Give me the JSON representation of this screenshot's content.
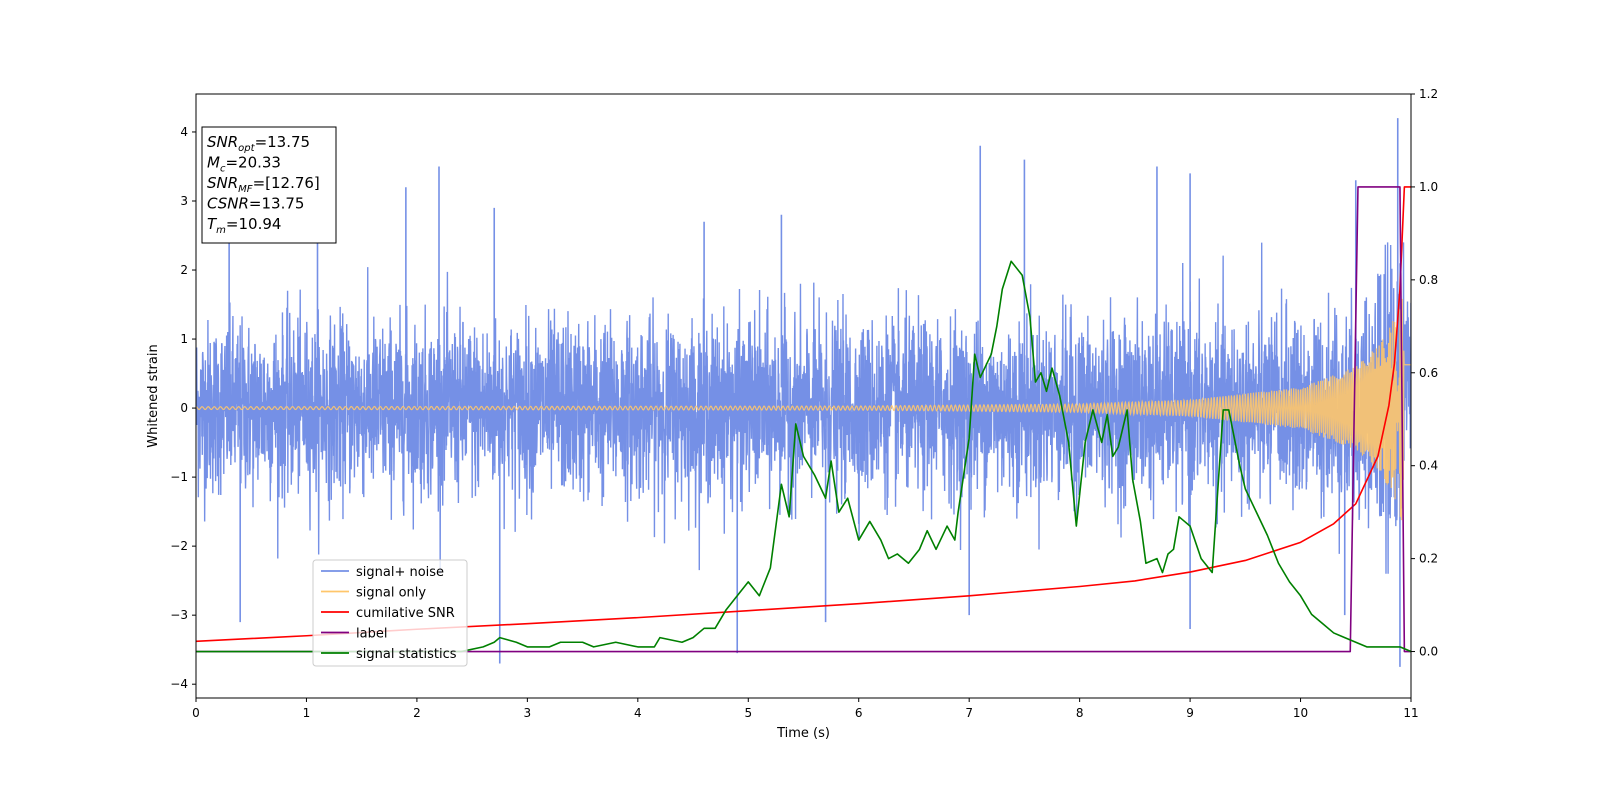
{
  "chart_data": {
    "type": "line",
    "title": "",
    "xlabel": "Time (s)",
    "ylabel": "Whitened strain",
    "xlim": [
      0,
      11
    ],
    "ylim": [
      -4.2,
      4.55
    ],
    "y2lim": [
      -0.1,
      1.2
    ],
    "xticks": [
      0,
      1,
      2,
      3,
      4,
      5,
      6,
      7,
      8,
      9,
      10,
      11
    ],
    "yticks": [
      -4,
      -3,
      -2,
      -1,
      0,
      1,
      2,
      3,
      4
    ],
    "y2ticks": [
      "0.0",
      "0.2",
      "0.4",
      "0.6",
      "0.8",
      "1.0",
      "1.2"
    ],
    "grid": false,
    "legend_placement": "lower-left",
    "annotation": {
      "lines": [
        {
          "sym": "SNR",
          "sub": "opt",
          "val": "=13.75"
        },
        {
          "sym": "M",
          "sub": "c",
          "val": "=20.33"
        },
        {
          "sym": "SNR",
          "sub": "MF",
          "val": "=[12.76]"
        },
        {
          "sym": "CSNR",
          "sub": "",
          "val": "=13.75"
        },
        {
          "sym": "T",
          "sub": "m",
          "val": "=10.94"
        }
      ]
    },
    "series": [
      {
        "name": "signal+ noise",
        "color": "#7590e6",
        "axis": "left",
        "note": "dense noise band, typical amplitude ±1.4 with spikes reaching about 4.2 and -3.7",
        "peaks": [
          [
            0.3,
            2.5
          ],
          [
            1.1,
            2.5
          ],
          [
            1.9,
            3.2
          ],
          [
            2.2,
            3.5
          ],
          [
            2.7,
            2.9
          ],
          [
            4.6,
            2.7
          ],
          [
            5.3,
            2.8
          ],
          [
            7.1,
            3.8
          ],
          [
            7.5,
            3.6
          ],
          [
            8.7,
            3.5
          ],
          [
            9.0,
            3.4
          ],
          [
            10.5,
            3.3
          ],
          [
            10.88,
            4.2
          ]
        ],
        "troughs": [
          [
            0.4,
            -3.1
          ],
          [
            2.75,
            -3.7
          ],
          [
            4.9,
            -3.55
          ],
          [
            5.7,
            -3.1
          ],
          [
            7.0,
            -3.0
          ],
          [
            9.0,
            -3.2
          ],
          [
            10.4,
            -3.0
          ],
          [
            10.9,
            -3.75
          ]
        ]
      },
      {
        "name": "signal only",
        "color": "#ffc66b",
        "axis": "left",
        "note": "chirp oscillation with growing amplitude",
        "envelope": [
          [
            0,
            0.02
          ],
          [
            6,
            0.03
          ],
          [
            8,
            0.06
          ],
          [
            9,
            0.12
          ],
          [
            10,
            0.3
          ],
          [
            10.5,
            0.6
          ],
          [
            10.7,
            0.9
          ],
          [
            10.85,
            1.3
          ],
          [
            10.94,
            1.8
          ],
          [
            11,
            1.8
          ]
        ]
      },
      {
        "name": "cumilative SNR",
        "color": "#ff0000",
        "axis": "right",
        "x": [
          0,
          1,
          2,
          3,
          4,
          5,
          6,
          7,
          8,
          8.5,
          9,
          9.5,
          10,
          10.3,
          10.5,
          10.7,
          10.8,
          10.85,
          10.9,
          10.94,
          11
        ],
        "y": [
          0.022,
          0.034,
          0.048,
          0.06,
          0.073,
          0.088,
          0.103,
          0.12,
          0.14,
          0.152,
          0.171,
          0.196,
          0.235,
          0.275,
          0.318,
          0.42,
          0.53,
          0.62,
          0.78,
          1.0,
          1.0
        ]
      },
      {
        "name": "label",
        "color": "#800080",
        "axis": "right",
        "x": [
          0,
          10.45,
          10.52,
          10.9,
          10.94,
          11
        ],
        "y": [
          0,
          0,
          1,
          1,
          0,
          0
        ]
      },
      {
        "name": "signal statistics",
        "color": "#008000",
        "axis": "right",
        "x": [
          0,
          2.4,
          2.6,
          2.7,
          2.75,
          2.9,
          3.0,
          3.2,
          3.3,
          3.5,
          3.6,
          3.8,
          4.0,
          4.15,
          4.2,
          4.4,
          4.5,
          4.6,
          4.7,
          4.8,
          4.9,
          5.0,
          5.1,
          5.2,
          5.3,
          5.37,
          5.43,
          5.5,
          5.6,
          5.7,
          5.75,
          5.82,
          5.9,
          6.0,
          6.1,
          6.2,
          6.27,
          6.35,
          6.45,
          6.55,
          6.62,
          6.7,
          6.8,
          6.87,
          6.9,
          7.0,
          7.05,
          7.1,
          7.2,
          7.25,
          7.3,
          7.38,
          7.48,
          7.55,
          7.6,
          7.65,
          7.7,
          7.75,
          7.82,
          7.9,
          7.97,
          8.05,
          8.12,
          8.2,
          8.25,
          8.3,
          8.35,
          8.43,
          8.48,
          8.55,
          8.6,
          8.7,
          8.75,
          8.8,
          8.85,
          8.9,
          8.95,
          9.0,
          9.1,
          9.2,
          9.3,
          9.35,
          9.45,
          9.5,
          9.6,
          9.7,
          9.8,
          9.9,
          10.0,
          10.1,
          10.2,
          10.3,
          10.4,
          10.5,
          10.6,
          10.7,
          10.8,
          10.9,
          11
        ],
        "y": [
          0,
          0.0,
          0.01,
          0.02,
          0.03,
          0.02,
          0.01,
          0.01,
          0.02,
          0.02,
          0.01,
          0.02,
          0.01,
          0.01,
          0.03,
          0.02,
          0.03,
          0.05,
          0.05,
          0.09,
          0.12,
          0.15,
          0.12,
          0.18,
          0.36,
          0.29,
          0.49,
          0.42,
          0.38,
          0.33,
          0.41,
          0.3,
          0.33,
          0.24,
          0.28,
          0.24,
          0.2,
          0.21,
          0.19,
          0.22,
          0.26,
          0.22,
          0.27,
          0.24,
          0.3,
          0.46,
          0.64,
          0.59,
          0.64,
          0.7,
          0.78,
          0.84,
          0.81,
          0.72,
          0.58,
          0.6,
          0.56,
          0.61,
          0.55,
          0.45,
          0.27,
          0.45,
          0.52,
          0.45,
          0.51,
          0.42,
          0.44,
          0.52,
          0.37,
          0.28,
          0.19,
          0.2,
          0.17,
          0.21,
          0.22,
          0.29,
          0.28,
          0.27,
          0.2,
          0.17,
          0.52,
          0.52,
          0.4,
          0.35,
          0.3,
          0.25,
          0.19,
          0.15,
          0.12,
          0.08,
          0.06,
          0.04,
          0.03,
          0.02,
          0.01,
          0.01,
          0.01,
          0.01,
          0.0
        ]
      }
    ]
  }
}
